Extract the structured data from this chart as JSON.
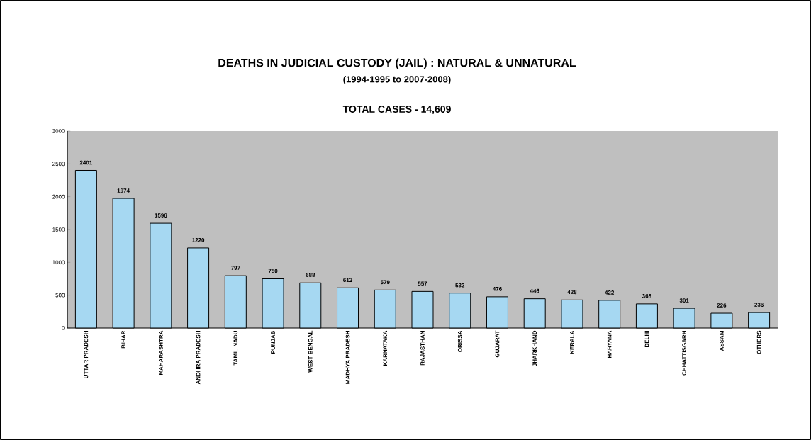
{
  "chart_data": {
    "type": "bar",
    "title": "DEATHS IN JUDICIAL CUSTODY (JAIL)  : NATURAL & UNNATURAL",
    "subtitle": "(1994-1995 to 2007-2008)",
    "annotations": [
      "TOTAL CASES - 14,609"
    ],
    "categories": [
      "UTTAR PRADESH",
      "BIHAR",
      "MAHARASHTRA",
      "ANDHRA PRADESH",
      "TAMIL NADU",
      "PUNJAB",
      "WEST BENGAL",
      "MADHYA PRADESH",
      "KARNATAKA",
      "RAJASTHAN",
      "ORISSA",
      "GUJARAT",
      "JHARKHAND",
      "KERALA",
      "HARYANA",
      "DELHI",
      "CHHATTISGARH",
      "ASSAM",
      "OTHERS"
    ],
    "values": [
      2401,
      1974,
      1596,
      1220,
      797,
      750,
      688,
      612,
      579,
      557,
      532,
      476,
      446,
      428,
      422,
      368,
      301,
      226,
      236
    ],
    "color": "#a6d8f2",
    "ylim": [
      0,
      3000
    ],
    "yticks": [
      0,
      500,
      1000,
      1500,
      2000,
      2500,
      3000
    ],
    "data_labels": true
  }
}
